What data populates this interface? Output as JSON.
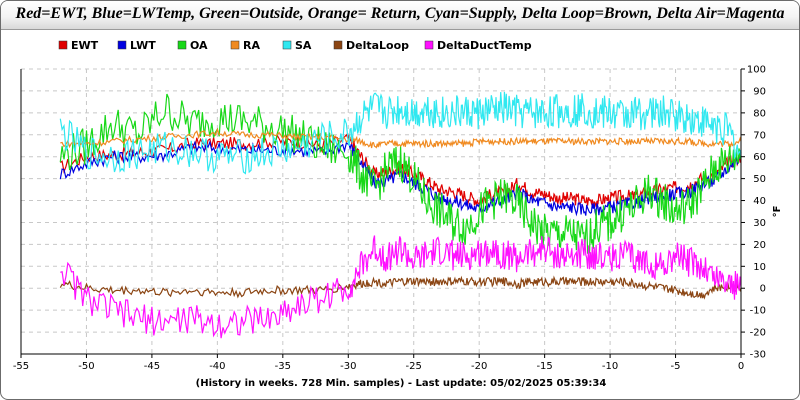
{
  "chart_data": {
    "type": "line",
    "title": "Red=EWT, Blue=LWTemp, Green=Outside, Orange= Return, Cyan=Supply, Delta Loop=Brown, Delta Air=Magenta",
    "xlabel": "(History in weeks. 728 Min. samples) - Last update: 05/02/2025 05:39:34",
    "ylabel": "°F",
    "xlim": [
      -55,
      0
    ],
    "ylim": [
      -30,
      100
    ],
    "x_ticks": [
      -55,
      -50,
      -45,
      -40,
      -35,
      -30,
      -25,
      -20,
      -15,
      -10,
      -5,
      0
    ],
    "y_ticks": [
      -30,
      -20,
      -10,
      0,
      10,
      20,
      30,
      40,
      50,
      60,
      70,
      80,
      90,
      100
    ],
    "grid": true,
    "legend_position": "top",
    "x": [
      -52,
      -50,
      -48,
      -46,
      -44,
      -42,
      -40,
      -38,
      -36,
      -34,
      -32,
      -30,
      -29,
      -28,
      -27,
      -26,
      -25,
      -24,
      -23,
      -22,
      -21,
      -20,
      -19,
      -18,
      -17,
      -16,
      -15,
      -14,
      -13,
      -12,
      -11,
      -10,
      -9,
      -8,
      -7,
      -6,
      -5,
      -4,
      -3,
      -2,
      -1,
      0
    ],
    "series": [
      {
        "name": "EWT",
        "color": "#e00000",
        "values": [
          55,
          60,
          61,
          62,
          63,
          66,
          66,
          66,
          67,
          67,
          65,
          68,
          60,
          52,
          53,
          55,
          52,
          49,
          45,
          44,
          42,
          40,
          43,
          44,
          48,
          44,
          43,
          41,
          41,
          40,
          40,
          41,
          42,
          42,
          44,
          45,
          46,
          47,
          50,
          52,
          57,
          60
        ]
      },
      {
        "name": "LWT",
        "color": "#0000e0",
        "values": [
          52,
          57,
          60,
          60,
          61,
          64,
          64,
          63,
          63,
          63,
          62,
          66,
          57,
          48,
          49,
          52,
          48,
          45,
          41,
          40,
          38,
          36,
          39,
          40,
          44,
          40,
          39,
          37,
          37,
          36,
          36,
          37,
          38,
          39,
          41,
          42,
          43,
          44,
          47,
          49,
          55,
          60
        ]
      },
      {
        "name": "OA",
        "color": "#18d818",
        "values": [
          60,
          65,
          75,
          70,
          82,
          75,
          78,
          76,
          74,
          70,
          64,
          62,
          52,
          45,
          55,
          58,
          50,
          40,
          35,
          30,
          28,
          35,
          40,
          42,
          38,
          30,
          25,
          25,
          25,
          22,
          28,
          30,
          35,
          38,
          45,
          40,
          35,
          38,
          45,
          55,
          58,
          62
        ]
      },
      {
        "name": "RA",
        "color": "#f08a20",
        "values": [
          66,
          66,
          67,
          68,
          69,
          70,
          71,
          70,
          70,
          69,
          69,
          68,
          67,
          65,
          66,
          66,
          66,
          66,
          66,
          66,
          66,
          67,
          67,
          67,
          67,
          67,
          67,
          67,
          67,
          67,
          67,
          67,
          67,
          67,
          67,
          67,
          67,
          67,
          66,
          66,
          66,
          67
        ]
      },
      {
        "name": "SA",
        "color": "#30e8f0",
        "values": [
          72,
          62,
          60,
          62,
          64,
          63,
          60,
          60,
          62,
          64,
          68,
          70,
          78,
          82,
          80,
          82,
          80,
          82,
          80,
          80,
          80,
          80,
          81,
          82,
          80,
          80,
          80,
          81,
          81,
          82,
          80,
          80,
          79,
          80,
          80,
          80,
          79,
          78,
          76,
          74,
          72,
          60
        ]
      },
      {
        "name": "DeltaLoop",
        "color": "#8b4513",
        "values": [
          2,
          0,
          -1,
          -1,
          -2,
          -1,
          -2,
          -2,
          -1,
          -1,
          -1,
          1,
          2,
          3,
          2,
          3,
          3,
          3,
          3,
          3,
          3,
          3,
          3,
          3,
          2,
          3,
          3,
          3,
          3,
          3,
          3,
          3,
          3,
          2,
          1,
          0,
          -1,
          -2,
          -3,
          0,
          1,
          0
        ]
      },
      {
        "name": "DeltaDuctTemp",
        "color": "#ff10ff",
        "values": [
          10,
          -5,
          -10,
          -14,
          -15,
          -14,
          -16,
          -15,
          -14,
          -8,
          -4,
          0,
          10,
          18,
          14,
          18,
          12,
          15,
          17,
          15,
          14,
          16,
          18,
          15,
          14,
          16,
          18,
          15,
          14,
          16,
          15,
          14,
          16,
          12,
          12,
          10,
          15,
          12,
          10,
          5,
          3,
          0
        ]
      }
    ]
  }
}
